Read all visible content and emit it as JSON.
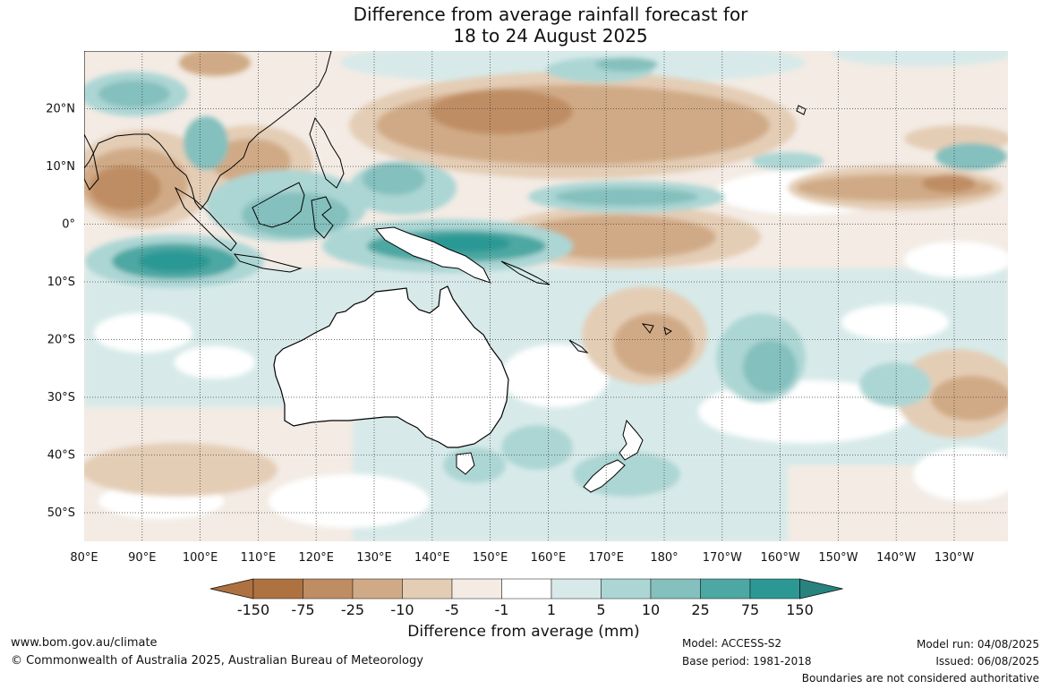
{
  "title": {
    "line1": "Difference from average rainfall forecast for",
    "line2": "18 to 24 August 2025"
  },
  "map": {
    "lat_labels": [
      "20°N",
      "10°N",
      "0°",
      "10°S",
      "20°S",
      "30°S",
      "40°S",
      "50°S"
    ],
    "lon_labels": [
      "80°E",
      "90°E",
      "100°E",
      "110°E",
      "120°E",
      "130°E",
      "140°E",
      "150°E",
      "160°E",
      "170°E",
      "180°",
      "170°W",
      "160°W",
      "150°W",
      "140°W",
      "130°W"
    ],
    "gridlines": true,
    "land_color": "#ffffff",
    "coastline_color": "#000000"
  },
  "legend": {
    "title": "Difference from average (mm)",
    "ticks": [
      "-150",
      "-75",
      "-25",
      "-10",
      "-5",
      "-1",
      "1",
      "5",
      "10",
      "25",
      "75",
      "150"
    ],
    "colors": [
      "#ad7240",
      "#bf8d63",
      "#d0aa86",
      "#e4cdb5",
      "#f3ebe4",
      "#ffffff",
      "#d7eae9",
      "#acd6d4",
      "#84c0bd",
      "#4da7a3",
      "#2c9894",
      "#28837f"
    ]
  },
  "footer": {
    "website": "www.bom.gov.au/climate",
    "copyright": "© Commonwealth of Australia 2025, Australian Bureau of Meteorology",
    "model": "Model: ACCESS-S2",
    "base_period": "Base period: 1981-2018",
    "model_run": "Model run: 04/08/2025",
    "issued": "Issued: 06/08/2025",
    "disclaimer": "Boundaries are not considered authoritative"
  }
}
